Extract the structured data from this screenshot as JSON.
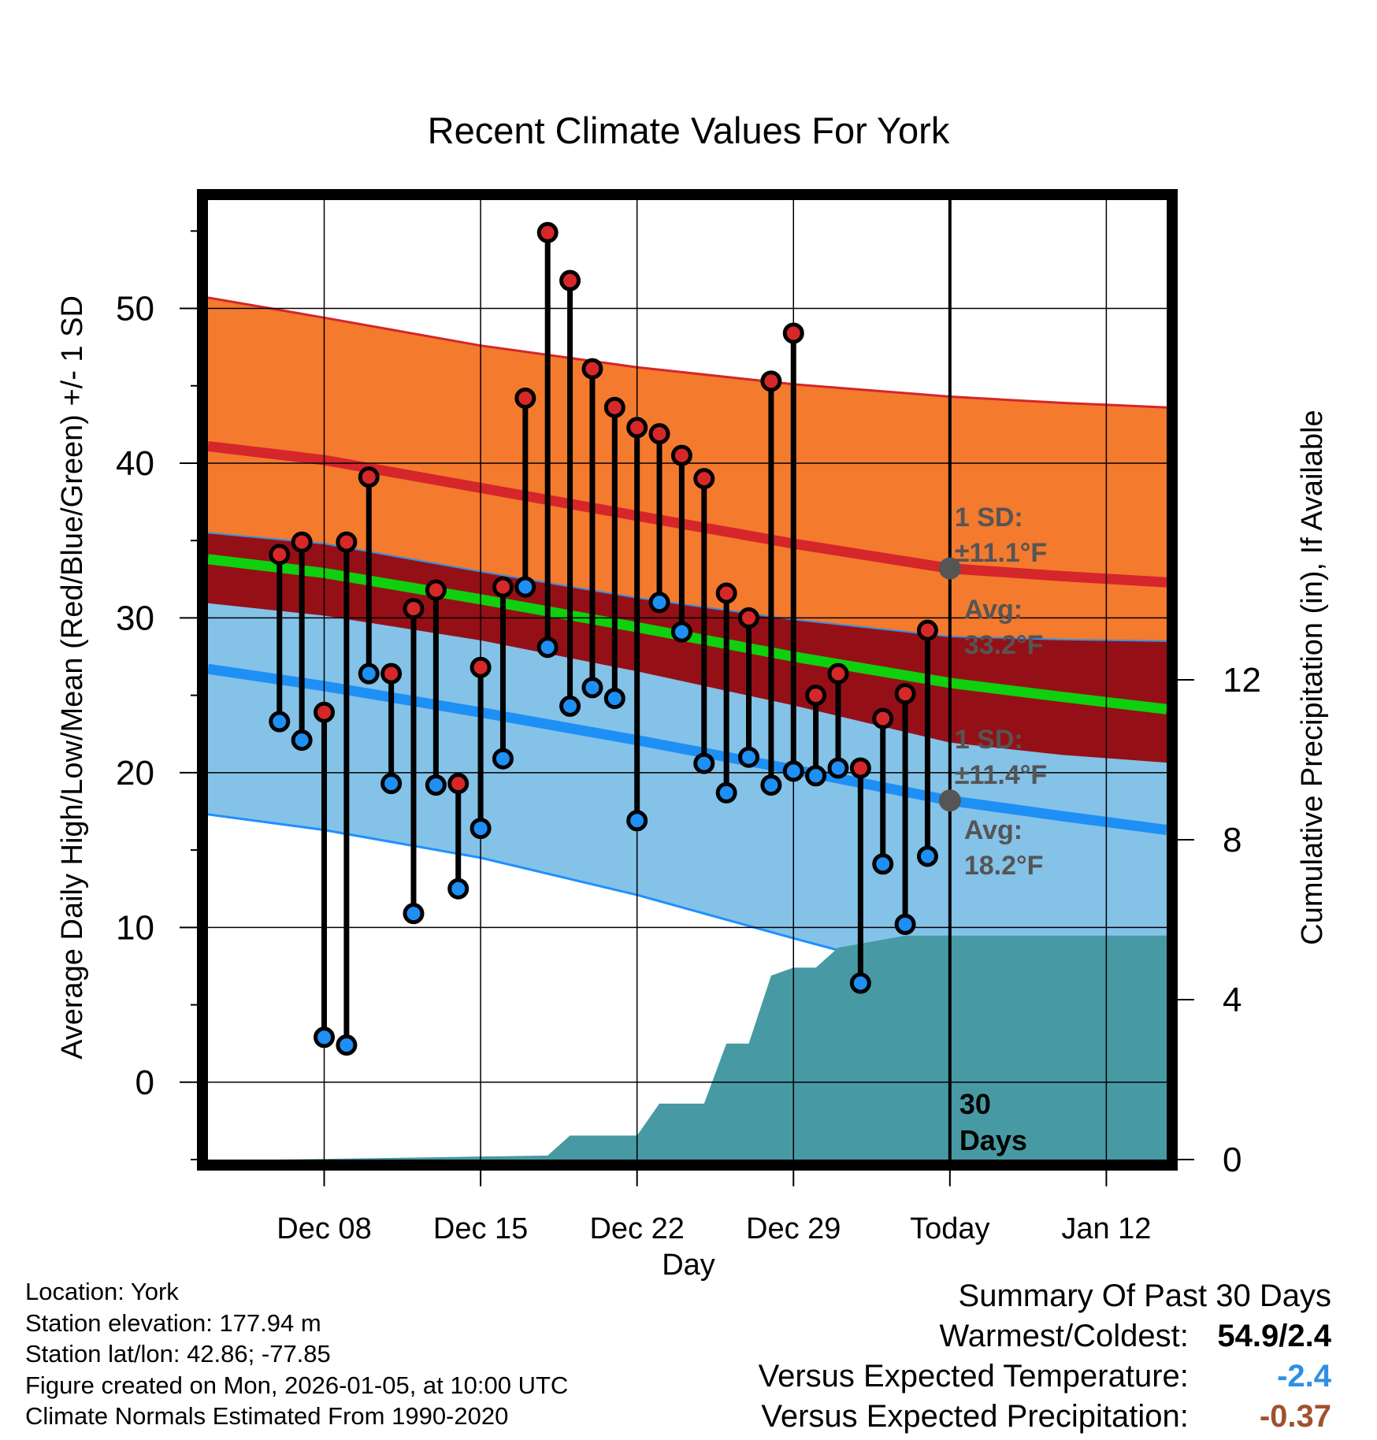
{
  "title": "Recent Climate Values For York",
  "chart_data": {
    "type": "line",
    "title": "Recent Climate Values For York",
    "xlabel": "Day",
    "ylabel": "Average Daily High/Low/Mean (Red/Blue/Green) +/- 1 SD",
    "y2label": "Cumulative Precipitation (in), If Available",
    "xlim_days_from_today": [
      -33.2,
      9.7
    ],
    "ylim": [
      -5,
      57
    ],
    "y_ticks": [
      0,
      10,
      20,
      30,
      40,
      50
    ],
    "y2lim": [
      0,
      24
    ],
    "y2_ticks": [
      0,
      4,
      8,
      12
    ],
    "x_ticks": [
      {
        "day": -28,
        "label": "Dec 08"
      },
      {
        "day": -21,
        "label": "Dec 15"
      },
      {
        "day": -14,
        "label": "Dec 22"
      },
      {
        "day": -7,
        "label": "Dec 29"
      },
      {
        "day": 0,
        "label": "Today"
      },
      {
        "day": 7,
        "label": "Jan 12"
      }
    ],
    "normals": {
      "days": [
        -33.2,
        -28,
        -21,
        -14,
        -7,
        0,
        5,
        9.7
      ],
      "high_avg": [
        41.1,
        40.2,
        38.4,
        36.6,
        34.8,
        33.2,
        32.7,
        32.3
      ],
      "high_plus_sd": [
        50.7,
        49.4,
        47.6,
        46.2,
        45.1,
        44.3,
        43.9,
        43.6
      ],
      "high_minus_sd": [
        35.5,
        34.8,
        33.0,
        31.3,
        29.9,
        28.8,
        28.6,
        28.5
      ],
      "mean_avg": [
        33.8,
        32.9,
        31.2,
        29.4,
        27.5,
        25.8,
        24.9,
        24.1
      ],
      "low_avg": [
        26.7,
        25.6,
        23.9,
        22.1,
        20.2,
        18.2,
        17.2,
        16.3
      ],
      "low_plus_sd": [
        31.0,
        30.2,
        28.6,
        26.6,
        24.4,
        22.0,
        21.2,
        20.7
      ],
      "low_minus_sd": [
        17.3,
        16.3,
        14.5,
        12.1,
        9.3,
        6.6,
        5.1,
        4.0
      ]
    },
    "observed": {
      "days": [
        -30,
        -29,
        -28,
        -27,
        -26,
        -25,
        -24,
        -23,
        -22,
        -21,
        -20,
        -19,
        -18,
        -17,
        -16,
        -15,
        -14,
        -13,
        -12,
        -11,
        -10,
        -9,
        -8,
        -7,
        -6,
        -5,
        -4,
        -3,
        -2,
        -1
      ],
      "high": [
        34.1,
        34.9,
        23.9,
        34.9,
        39.1,
        26.4,
        30.6,
        31.8,
        19.3,
        26.8,
        32.0,
        44.2,
        54.9,
        51.8,
        46.1,
        43.6,
        42.3,
        41.9,
        40.5,
        39.0,
        31.6,
        30.0,
        45.3,
        48.4,
        25.0,
        26.4,
        20.3,
        23.5,
        25.1,
        29.2
      ],
      "low": [
        23.3,
        22.1,
        2.9,
        2.4,
        26.4,
        19.3,
        10.9,
        19.2,
        12.5,
        16.4,
        20.9,
        32.0,
        28.1,
        24.3,
        25.5,
        24.8,
        16.9,
        31.0,
        29.1,
        20.6,
        18.7,
        21.0,
        19.2,
        20.1,
        19.8,
        20.3,
        6.4,
        14.1,
        10.2,
        14.6
      ]
    },
    "precip_cumulative": {
      "days": [
        -30,
        -24,
        -18,
        -17,
        -14,
        -13,
        -11,
        -10,
        -9,
        -8,
        -7,
        -6,
        -5,
        -4,
        -3,
        -2,
        -1,
        0,
        9.7
      ],
      "values": [
        0.0,
        0.05,
        0.1,
        0.6,
        0.6,
        1.4,
        1.4,
        2.9,
        2.9,
        4.6,
        4.8,
        4.8,
        5.3,
        5.4,
        5.5,
        5.6,
        5.6,
        5.6,
        5.6
      ]
    },
    "annotations": {
      "high_sd_label": [
        "1 SD:",
        "±11.1°F"
      ],
      "high_avg_label": [
        "Avg:",
        "33.2°F"
      ],
      "low_sd_label": [
        "1 SD:",
        "±11.4°F"
      ],
      "low_avg_label": [
        "Avg:",
        "18.2°F"
      ],
      "window_label": [
        "30",
        "Days"
      ],
      "high_avg_today": 33.2,
      "low_avg_today": 18.2
    }
  },
  "info": {
    "location": "Location: York",
    "elevation": "Station elevation: 177.94 m",
    "latlon": "Station lat/lon: 42.86; -77.85",
    "created": "Figure created on Mon, 2026-01-05, at 10:00 UTC",
    "normals": "Climate Normals Estimated From 1990-2020"
  },
  "summary": {
    "title": "Summary Of Past 30 Days",
    "warm_label": "Warmest/Coldest:",
    "warm_value": "54.9/2.4",
    "temp_label": "Versus Expected Temperature:",
    "temp_value": "-2.4",
    "temp_color": "#2e8fe6",
    "precip_label": "Versus Expected Precipitation:",
    "precip_value": "-0.37",
    "precip_color": "#a0522d"
  }
}
